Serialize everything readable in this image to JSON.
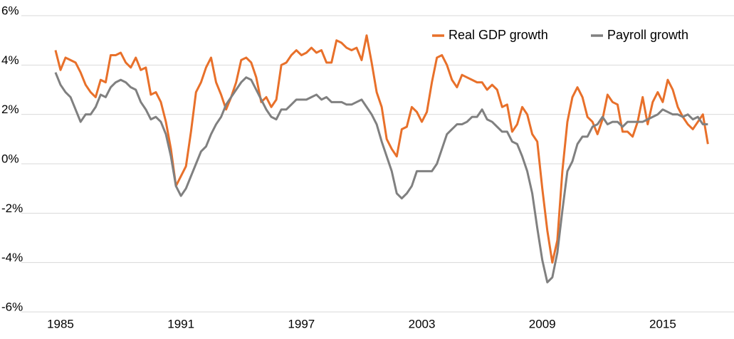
{
  "chart_data": {
    "type": "line",
    "x": [
      1984.75,
      1985,
      1985.25,
      1985.5,
      1985.75,
      1986,
      1986.25,
      1986.5,
      1986.75,
      1987,
      1987.25,
      1987.5,
      1987.75,
      1988,
      1988.25,
      1988.5,
      1988.75,
      1989,
      1989.25,
      1989.5,
      1989.75,
      1990,
      1990.25,
      1990.5,
      1990.75,
      1991,
      1991.25,
      1991.5,
      1991.75,
      1992,
      1992.25,
      1992.5,
      1992.75,
      1993,
      1993.25,
      1993.5,
      1993.75,
      1994,
      1994.25,
      1994.5,
      1994.75,
      1995,
      1995.25,
      1995.5,
      1995.75,
      1996,
      1996.25,
      1996.5,
      1996.75,
      1997,
      1997.25,
      1997.5,
      1997.75,
      1998,
      1998.25,
      1998.5,
      1998.75,
      1999,
      1999.25,
      1999.5,
      1999.75,
      2000,
      2000.25,
      2000.5,
      2000.75,
      2001,
      2001.25,
      2001.5,
      2001.75,
      2002,
      2002.25,
      2002.5,
      2002.75,
      2003,
      2003.25,
      2003.5,
      2003.75,
      2004,
      2004.25,
      2004.5,
      2004.75,
      2005,
      2005.25,
      2005.5,
      2005.75,
      2006,
      2006.25,
      2006.5,
      2006.75,
      2007,
      2007.25,
      2007.5,
      2007.75,
      2008,
      2008.25,
      2008.5,
      2008.75,
      2009,
      2009.25,
      2009.5,
      2009.75,
      2010,
      2010.25,
      2010.5,
      2010.75,
      2011,
      2011.25,
      2011.5,
      2011.75,
      2012,
      2012.25,
      2012.5,
      2012.75,
      2013,
      2013.25,
      2013.5,
      2013.75,
      2014,
      2014.25,
      2014.5,
      2014.75,
      2015,
      2015.25,
      2015.5,
      2015.75,
      2016,
      2016.25,
      2016.5,
      2016.75,
      2017,
      2017.25
    ],
    "series": [
      {
        "name": "Real GDP growth",
        "color": "#e8702a",
        "values": [
          4.6,
          3.8,
          4.3,
          4.2,
          4.1,
          3.7,
          3.2,
          2.9,
          2.7,
          3.4,
          3.3,
          4.4,
          4.4,
          4.5,
          4.1,
          3.9,
          4.3,
          3.8,
          3.9,
          2.8,
          2.9,
          2.5,
          1.7,
          0.6,
          -0.9,
          -0.5,
          -0.1,
          1.3,
          2.9,
          3.3,
          3.9,
          4.3,
          3.3,
          2.8,
          2.2,
          2.7,
          3.3,
          4.2,
          4.3,
          4.1,
          3.5,
          2.5,
          2.7,
          2.3,
          2.6,
          4.0,
          4.1,
          4.4,
          4.6,
          4.4,
          4.5,
          4.7,
          4.5,
          4.6,
          4.1,
          4.1,
          5.0,
          4.9,
          4.7,
          4.6,
          4.7,
          4.2,
          5.2,
          4.1,
          2.9,
          2.3,
          1.0,
          0.6,
          0.3,
          1.4,
          1.5,
          2.3,
          2.1,
          1.7,
          2.1,
          3.3,
          4.3,
          4.4,
          4.0,
          3.4,
          3.1,
          3.6,
          3.5,
          3.4,
          3.3,
          3.3,
          3.0,
          3.2,
          3.0,
          2.3,
          2.4,
          1.3,
          1.6,
          2.3,
          2.0,
          1.2,
          0.9,
          -1.0,
          -2.7,
          -4.0,
          -3.1,
          -0.3,
          1.7,
          2.7,
          3.1,
          2.7,
          1.9,
          1.7,
          1.2,
          1.8,
          2.8,
          2.5,
          2.4,
          1.3,
          1.3,
          1.1,
          1.7,
          2.7,
          1.6,
          2.5,
          2.9,
          2.5,
          3.4,
          3.0,
          2.3,
          1.9,
          1.6,
          1.4,
          1.7,
          2.0,
          0.8
        ]
      },
      {
        "name": "Payroll growth",
        "color": "#808080",
        "values": [
          3.7,
          3.2,
          2.9,
          2.7,
          2.2,
          1.7,
          2.0,
          2.0,
          2.3,
          2.8,
          2.7,
          3.1,
          3.3,
          3.4,
          3.3,
          3.1,
          3.0,
          2.5,
          2.2,
          1.8,
          1.9,
          1.7,
          1.2,
          0.3,
          -0.9,
          -1.3,
          -1.0,
          -0.5,
          0.0,
          0.5,
          0.7,
          1.2,
          1.6,
          1.9,
          2.4,
          2.7,
          3.0,
          3.3,
          3.5,
          3.4,
          3.0,
          2.6,
          2.2,
          1.9,
          1.8,
          2.2,
          2.2,
          2.4,
          2.6,
          2.6,
          2.6,
          2.7,
          2.8,
          2.6,
          2.7,
          2.5,
          2.5,
          2.5,
          2.4,
          2.4,
          2.5,
          2.6,
          2.3,
          2.0,
          1.6,
          0.9,
          0.3,
          -0.3,
          -1.2,
          -1.4,
          -1.2,
          -0.9,
          -0.3,
          -0.3,
          -0.3,
          -0.3,
          0.0,
          0.6,
          1.2,
          1.4,
          1.6,
          1.6,
          1.7,
          1.9,
          1.9,
          2.2,
          1.8,
          1.7,
          1.5,
          1.3,
          1.3,
          0.9,
          0.8,
          0.3,
          -0.3,
          -1.2,
          -2.6,
          -3.9,
          -4.8,
          -4.6,
          -3.6,
          -1.9,
          -0.3,
          0.1,
          0.8,
          1.1,
          1.1,
          1.5,
          1.6,
          1.9,
          1.6,
          1.7,
          1.7,
          1.5,
          1.7,
          1.7,
          1.7,
          1.7,
          1.8,
          1.9,
          2.0,
          2.2,
          2.1,
          2.0,
          2.0,
          1.9,
          2.0,
          1.8,
          1.9,
          1.6,
          1.6
        ]
      }
    ],
    "xlim": [
      1983.05,
      2018.55
    ],
    "xticks": [
      1985,
      1991,
      1997,
      2003,
      2009,
      2015
    ],
    "ylim": [
      -6,
      6
    ],
    "yticks": [
      {
        "value": -6,
        "label": "-6%"
      },
      {
        "value": -4,
        "label": "-4%"
      },
      {
        "value": -2,
        "label": "-2%"
      },
      {
        "value": 0,
        "label": "0%"
      },
      {
        "value": 2,
        "label": "2%"
      },
      {
        "value": 4,
        "label": "4%"
      },
      {
        "value": 6,
        "label": "6%"
      }
    ],
    "grid": true,
    "legend": "upper right"
  }
}
